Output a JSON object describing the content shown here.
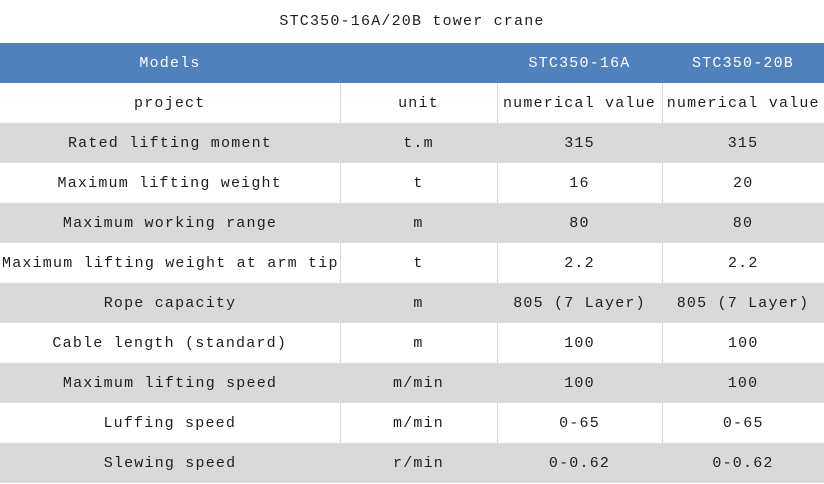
{
  "page": {
    "title": "STC350-16A/20B tower crane"
  },
  "colors": {
    "header_bg": "#4f81bd",
    "header_text": "#ffffff",
    "row_alt_bg": "#d9d9d9",
    "row_bg": "#ffffff",
    "text": "#1f1f1f",
    "divider": "#d9d9d9"
  },
  "table": {
    "header": {
      "models_label": "Models",
      "spacer": "",
      "col_16a": "STC350-16A",
      "col_20b": "STC350-20B"
    },
    "subheader": {
      "project": "project",
      "unit": "unit",
      "value_16a": "numerical value",
      "value_20b": "numerical value"
    },
    "rows": [
      {
        "project": "Rated lifting moment",
        "unit": "t.m",
        "stc350_16a": "315",
        "stc350_20b": "315"
      },
      {
        "project": "Maximum lifting weight",
        "unit": "t",
        "stc350_16a": "16",
        "stc350_20b": "20"
      },
      {
        "project": "Maximum working range",
        "unit": "m",
        "stc350_16a": "80",
        "stc350_20b": "80"
      },
      {
        "project": "Maximum lifting weight at arm tip",
        "unit": "t",
        "stc350_16a": "2.2",
        "stc350_20b": "2.2"
      },
      {
        "project": "Rope capacity",
        "unit": "m",
        "stc350_16a": "805 (7 Layer)",
        "stc350_20b": "805 (7 Layer)"
      },
      {
        "project": "Cable length (standard)",
        "unit": "m",
        "stc350_16a": "100",
        "stc350_20b": "100"
      },
      {
        "project": "Maximum lifting speed",
        "unit": "m/min",
        "stc350_16a": "100",
        "stc350_20b": "100"
      },
      {
        "project": "Luffing speed",
        "unit": "m/min",
        "stc350_16a": "0-65",
        "stc350_20b": "0-65"
      },
      {
        "project": "Slewing speed",
        "unit": "r/min",
        "stc350_16a": "0-0.62",
        "stc350_20b": "0-0.62"
      }
    ]
  }
}
